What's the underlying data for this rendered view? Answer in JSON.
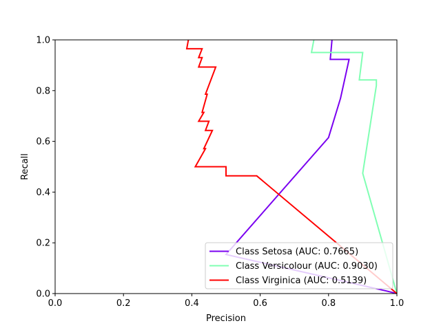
{
  "chart_data": {
    "type": "line",
    "title": "",
    "xlabel": "Precision",
    "ylabel": "Recall",
    "xlim": [
      0,
      1
    ],
    "ylim": [
      0,
      1
    ],
    "xticks": [
      "0.0",
      "0.2",
      "0.4",
      "0.6",
      "0.8",
      "1.0"
    ],
    "yticks": [
      "0.0",
      "0.2",
      "0.4",
      "0.6",
      "0.8",
      "1.0"
    ],
    "grid": false,
    "legend_position": "lower-right",
    "series": [
      {
        "name": "Class Setosa (AUC: 0.7665)",
        "color": "#7a00f0",
        "points": [
          [
            0.81,
            1.0
          ],
          [
            0.805,
            0.923
          ],
          [
            0.86,
            0.923
          ],
          [
            0.835,
            0.77
          ],
          [
            0.8,
            0.615
          ],
          [
            0.5,
            0.154
          ],
          [
            0.97,
            0.01
          ],
          [
            1.0,
            0.0
          ]
        ]
      },
      {
        "name": "Class Versicolour (AUC: 0.9030)",
        "color": "#80ffb3",
        "points": [
          [
            0.757,
            1.0
          ],
          [
            0.75,
            0.95
          ],
          [
            0.9,
            0.95
          ],
          [
            0.89,
            0.842
          ],
          [
            0.94,
            0.842
          ],
          [
            0.94,
            0.82
          ],
          [
            0.9,
            0.474
          ],
          [
            1.0,
            0.0
          ]
        ]
      },
      {
        "name": "Class Virginica (AUC: 0.5139)",
        "color": "#ff0000",
        "points": [
          [
            0.39,
            1.0
          ],
          [
            0.385,
            0.965
          ],
          [
            0.43,
            0.965
          ],
          [
            0.42,
            0.93
          ],
          [
            0.43,
            0.93
          ],
          [
            0.42,
            0.893
          ],
          [
            0.47,
            0.893
          ],
          [
            0.44,
            0.786
          ],
          [
            0.445,
            0.786
          ],
          [
            0.43,
            0.714
          ],
          [
            0.435,
            0.714
          ],
          [
            0.42,
            0.679
          ],
          [
            0.45,
            0.679
          ],
          [
            0.44,
            0.643
          ],
          [
            0.46,
            0.643
          ],
          [
            0.435,
            0.571
          ],
          [
            0.44,
            0.571
          ],
          [
            0.41,
            0.5
          ],
          [
            0.5,
            0.5
          ],
          [
            0.5,
            0.464
          ],
          [
            0.59,
            0.464
          ],
          [
            1.0,
            0.0
          ]
        ]
      }
    ]
  }
}
